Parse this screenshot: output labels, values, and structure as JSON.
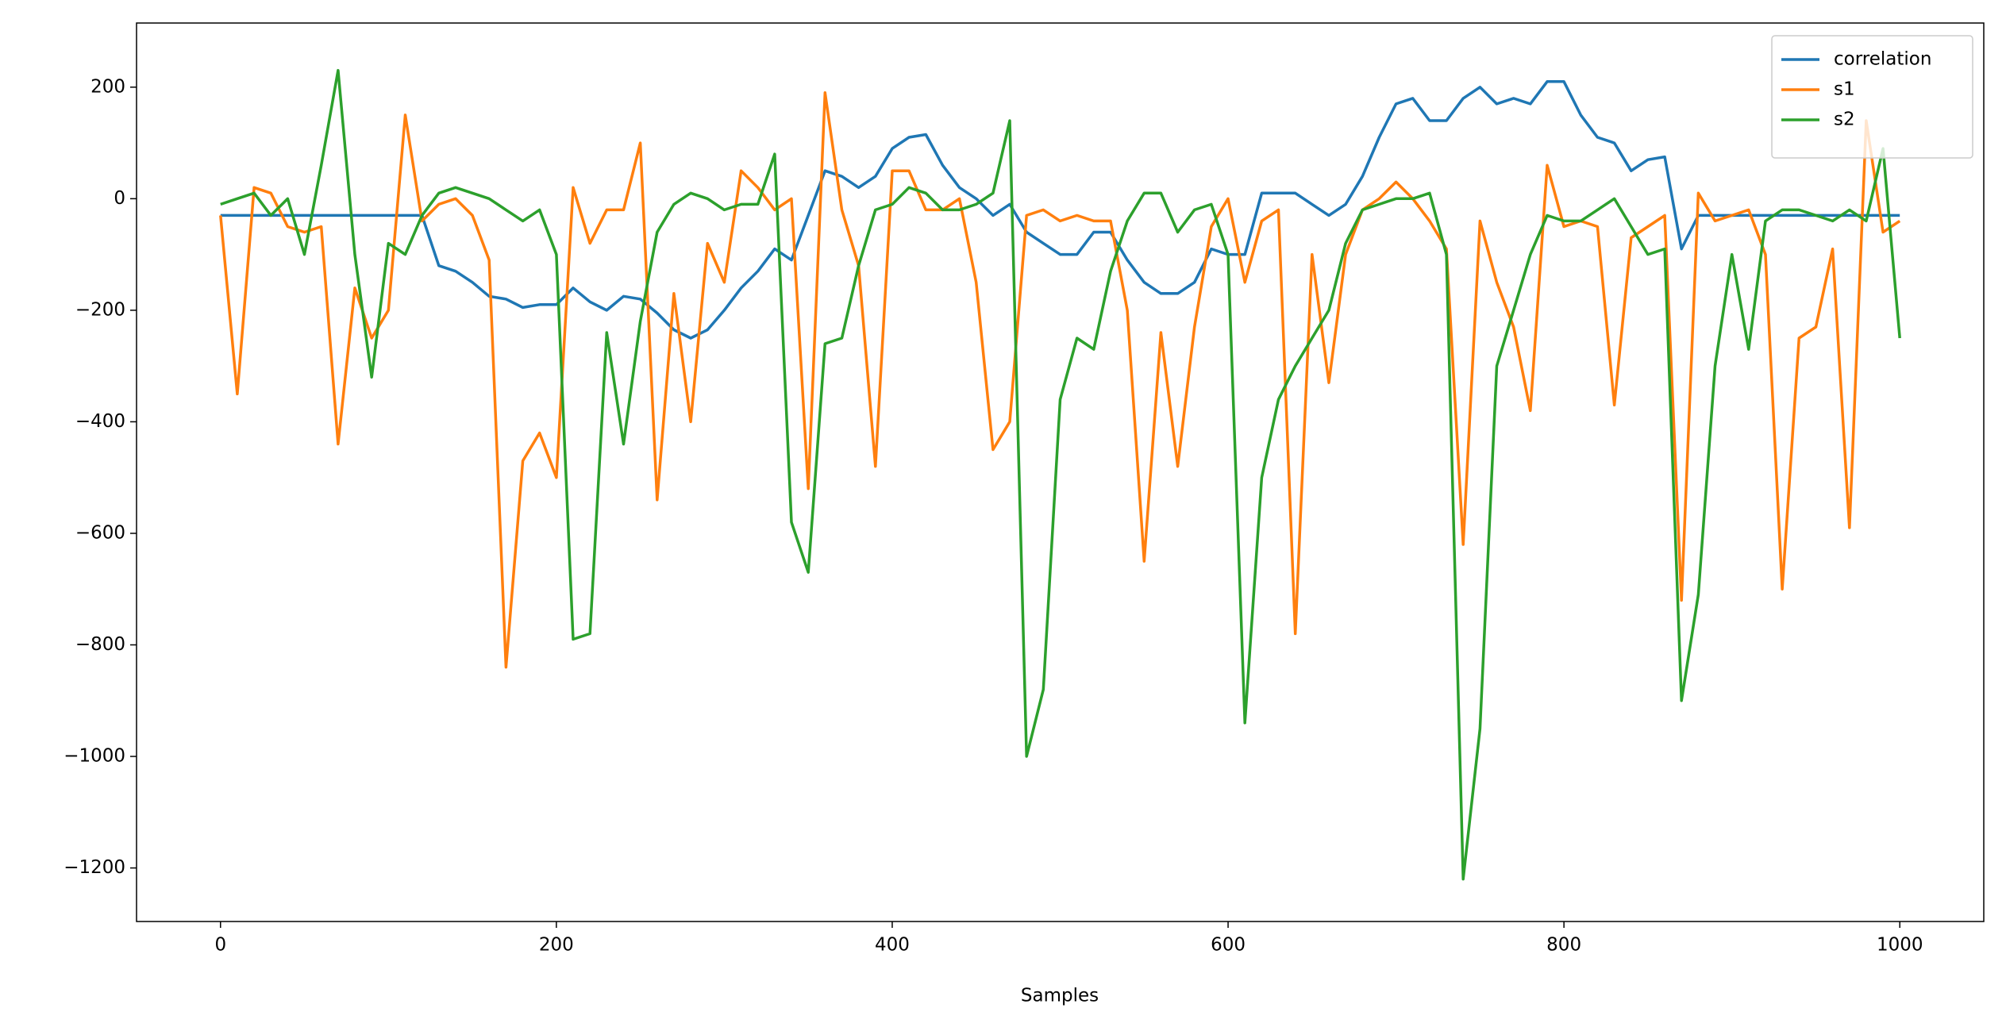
{
  "chart_data": {
    "type": "line",
    "xlabel": "Samples",
    "x": [
      0,
      10,
      20,
      30,
      40,
      50,
      60,
      70,
      80,
      90,
      100,
      110,
      120,
      130,
      140,
      150,
      160,
      170,
      180,
      190,
      200,
      210,
      220,
      230,
      240,
      250,
      260,
      270,
      280,
      290,
      300,
      310,
      320,
      330,
      340,
      350,
      360,
      370,
      380,
      390,
      400,
      410,
      420,
      430,
      440,
      450,
      460,
      470,
      480,
      490,
      500,
      510,
      520,
      530,
      540,
      550,
      560,
      570,
      580,
      590,
      600,
      610,
      620,
      630,
      640,
      650,
      660,
      670,
      680,
      690,
      700,
      710,
      720,
      730,
      740,
      750,
      760,
      770,
      780,
      790,
      800,
      810,
      820,
      830,
      840,
      850,
      860,
      870,
      880,
      890,
      900,
      910,
      920,
      930,
      940,
      950,
      960,
      970,
      980,
      990,
      1000
    ],
    "series": [
      {
        "name": "correlation",
        "color": "#1f77b4",
        "values": [
          -30,
          -30,
          -30,
          -30,
          -30,
          -30,
          -30,
          -30,
          -30,
          -30,
          -30,
          -30,
          -30,
          -120,
          -130,
          -150,
          -175,
          -180,
          -195,
          -190,
          -190,
          -160,
          -185,
          -200,
          -175,
          -180,
          -205,
          -235,
          -250,
          -235,
          -200,
          -160,
          -130,
          -90,
          -110,
          -30,
          50,
          40,
          20,
          40,
          90,
          110,
          115,
          60,
          20,
          0,
          -30,
          -10,
          -60,
          -80,
          -100,
          -100,
          -60,
          -60,
          -110,
          -150,
          -170,
          -170,
          -150,
          -90,
          -100,
          -100,
          10,
          10,
          10,
          -10,
          -30,
          -10,
          40,
          110,
          170,
          180,
          140,
          140,
          180,
          200,
          170,
          180,
          170,
          210,
          210,
          150,
          110,
          100,
          50,
          70,
          75,
          -90,
          -30,
          -30,
          -30,
          -30,
          -30,
          -30,
          -30,
          -30,
          -30,
          -30,
          -30,
          -30,
          -30
        ]
      },
      {
        "name": "s1",
        "color": "#ff7f0e",
        "values": [
          -30,
          -350,
          20,
          10,
          -50,
          -60,
          -50,
          -440,
          -160,
          -250,
          -200,
          150,
          -40,
          -10,
          0,
          -30,
          -110,
          -840,
          -470,
          -420,
          -500,
          20,
          -80,
          -20,
          -20,
          100,
          -540,
          -170,
          -400,
          -80,
          -150,
          50,
          20,
          -20,
          0,
          -520,
          190,
          -20,
          -120,
          -480,
          50,
          50,
          -20,
          -20,
          0,
          -150,
          -450,
          -400,
          -30,
          -20,
          -40,
          -30,
          -40,
          -40,
          -200,
          -650,
          -240,
          -480,
          -230,
          -50,
          0,
          -150,
          -40,
          -20,
          -780,
          -100,
          -330,
          -100,
          -20,
          0,
          30,
          0,
          -40,
          -90,
          -620,
          -40,
          -150,
          -230,
          -380,
          60,
          -50,
          -40,
          -50,
          -370,
          -70,
          -50,
          -30,
          -720,
          10,
          -40,
          -30,
          -20,
          -100,
          -700,
          -250,
          -230,
          -90,
          -590,
          140,
          -60,
          -40
        ]
      },
      {
        "name": "s2",
        "color": "#2ca02c",
        "values": [
          -10,
          0,
          10,
          -30,
          0,
          -100,
          60,
          230,
          -100,
          -320,
          -80,
          -100,
          -30,
          10,
          20,
          10,
          0,
          -20,
          -40,
          -20,
          -100,
          -790,
          -780,
          -240,
          -440,
          -220,
          -60,
          -10,
          10,
          0,
          -20,
          -10,
          -10,
          80,
          -580,
          -670,
          -260,
          -250,
          -120,
          -20,
          -10,
          20,
          10,
          -20,
          -20,
          -10,
          10,
          140,
          -1000,
          -880,
          -360,
          -250,
          -270,
          -130,
          -40,
          10,
          10,
          -60,
          -20,
          -10,
          -100,
          -940,
          -500,
          -360,
          -300,
          -250,
          -200,
          -80,
          -20,
          -10,
          0,
          0,
          10,
          -100,
          -1220,
          -950,
          -300,
          -200,
          -100,
          -30,
          -40,
          -40,
          -20,
          0,
          -50,
          -100,
          -90,
          -900,
          -710,
          -300,
          -100,
          -270,
          -40,
          -20,
          -20,
          -30,
          -40,
          -20,
          -40,
          90,
          -250
        ]
      }
    ],
    "xlim": [
      -50,
      1050
    ],
    "ylim": [
      -1296,
      315
    ],
    "xticks": [
      0,
      200,
      400,
      600,
      800,
      1000
    ],
    "yticks": [
      {
        "value": -1200,
        "label": "−1200"
      },
      {
        "value": -1000,
        "label": "−1000"
      },
      {
        "value": -800,
        "label": "−800"
      },
      {
        "value": -600,
        "label": "−600"
      },
      {
        "value": -400,
        "label": "−400"
      },
      {
        "value": -200,
        "label": "−200"
      },
      0,
      200
    ],
    "legend": "upper right",
    "grid": false
  }
}
